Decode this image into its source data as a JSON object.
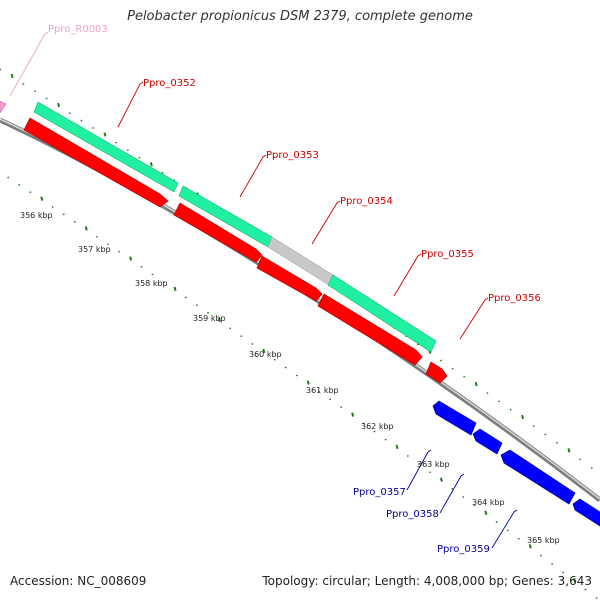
{
  "title": "Pelobacter propionicus DSM 2379, complete genome",
  "footer": {
    "accession": "Accession: NC_008609",
    "summary": "Topology: circular; Length: 4,008,000 bp; Genes: 3,643"
  },
  "colors": {
    "gene_forward": "#ff0000",
    "gene_reverse": "#0000ff",
    "orf": "#21f0a0",
    "rna": "#f5a0d0",
    "tick": "#1f7a1f",
    "backbone": "#808080",
    "label_forward": "#cc0000",
    "label_reverse": "#000099"
  },
  "genes": [
    {
      "label": "Ppro_R0003",
      "strand": "rna"
    },
    {
      "label": "Ppro_0352",
      "strand": "forward"
    },
    {
      "label": "Ppro_0353",
      "strand": "forward"
    },
    {
      "label": "Ppro_0354",
      "strand": "forward"
    },
    {
      "label": "Ppro_0355",
      "strand": "forward"
    },
    {
      "label": "Ppro_0356",
      "strand": "forward"
    },
    {
      "label": "Ppro_0357",
      "strand": "reverse"
    },
    {
      "label": "Ppro_0358",
      "strand": "reverse"
    },
    {
      "label": "Ppro_0359",
      "strand": "reverse"
    }
  ],
  "ticks": [
    "356 kbp",
    "357 kbp",
    "358 kbp",
    "359 kbp",
    "360 kbp",
    "361 kbp",
    "362 kbp",
    "363 kbp",
    "364 kbp",
    "365 kbp"
  ]
}
